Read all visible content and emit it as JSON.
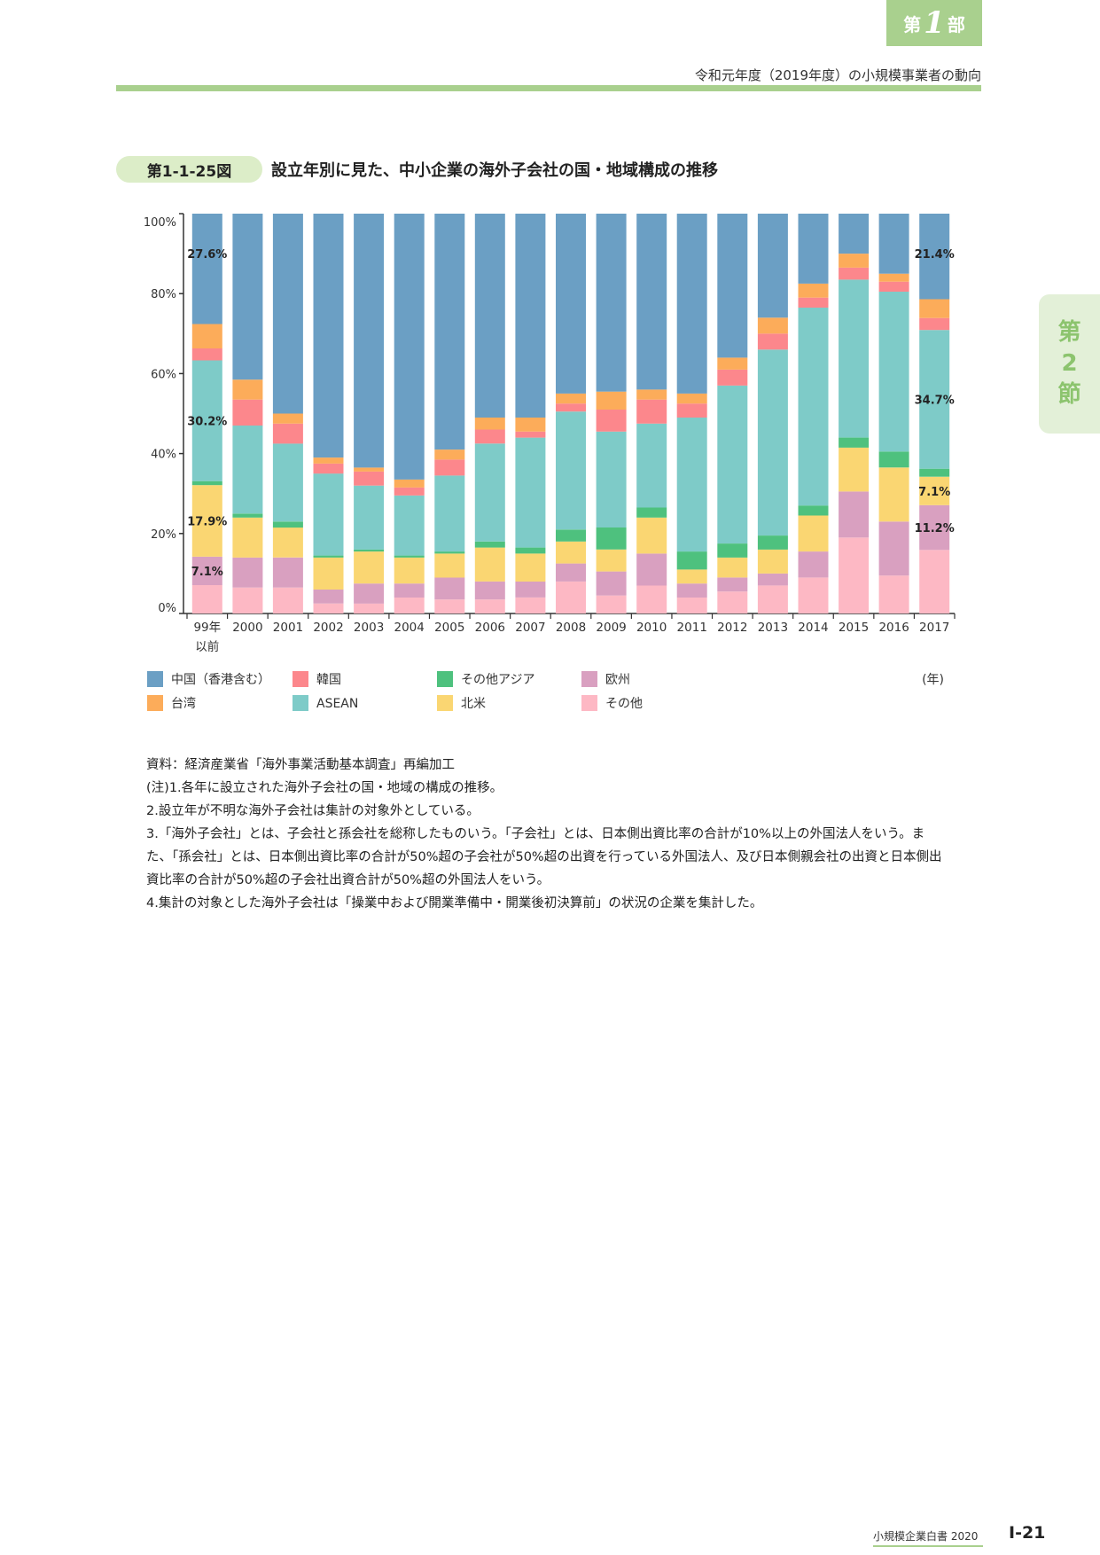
{
  "header": {
    "part_prefix": "第",
    "part_number": "1",
    "part_suffix": "部",
    "running_title": "令和元年度（2019年度）の小規模事業者の動向"
  },
  "section_tab": {
    "line1": "第",
    "line2": "2",
    "line3": "節"
  },
  "figure": {
    "label": "第1-1-25図",
    "title": "設立年別に見た、中小企業の海外子会社の国・地域構成の推移"
  },
  "chart_data": {
    "type": "bar",
    "stacked": true,
    "percent_stacked": true,
    "title": "",
    "xlabel": "",
    "ylabel": "",
    "x_unit_label": "(年)",
    "ylim": [
      0,
      100
    ],
    "y_ticks": [
      "0%",
      "20%",
      "40%",
      "60%",
      "80%",
      "100%"
    ],
    "grid": false,
    "legend_position": "bottom",
    "categories": [
      "99年\n以前",
      "2000",
      "2001",
      "2002",
      "2003",
      "2004",
      "2005",
      "2006",
      "2007",
      "2008",
      "2009",
      "2010",
      "2011",
      "2012",
      "2013",
      "2014",
      "2015",
      "2016",
      "2017"
    ],
    "series": [
      {
        "name": "その他",
        "color": "#fdb8c4",
        "values": [
          7.1,
          6.5,
          6.5,
          2.5,
          2.5,
          4.0,
          3.5,
          3.5,
          4.0,
          8.0,
          4.5,
          7.0,
          4.0,
          5.5,
          7.0,
          9.0,
          19.0,
          9.5,
          15.9
        ]
      },
      {
        "name": "欧州",
        "color": "#d9a0c0",
        "values": [
          7.1,
          7.5,
          7.5,
          3.5,
          5.0,
          3.5,
          5.5,
          4.5,
          4.0,
          4.5,
          6.0,
          8.0,
          3.5,
          3.5,
          3.0,
          6.5,
          11.5,
          13.5,
          11.2
        ]
      },
      {
        "name": "北米",
        "color": "#fad672",
        "values": [
          17.9,
          10.0,
          7.5,
          8.0,
          8.0,
          6.5,
          6.0,
          8.5,
          7.0,
          5.5,
          5.5,
          9.0,
          3.5,
          5.0,
          6.0,
          9.0,
          11.0,
          13.5,
          7.1
        ]
      },
      {
        "name": "その他アジア",
        "color": "#4ec17e",
        "values": [
          1.0,
          1.0,
          1.5,
          0.5,
          0.5,
          0.5,
          0.5,
          1.5,
          1.5,
          3.0,
          5.5,
          2.5,
          4.5,
          3.5,
          3.5,
          2.5,
          2.5,
          4.0,
          2.0
        ]
      },
      {
        "name": "ASEAN",
        "color": "#7ecbc8",
        "values": [
          30.2,
          22.0,
          19.5,
          20.5,
          16.0,
          15.0,
          19.0,
          24.5,
          27.5,
          29.5,
          24.0,
          21.0,
          33.5,
          39.5,
          46.5,
          49.5,
          39.5,
          40.0,
          34.7
        ]
      },
      {
        "name": "韓国",
        "color": "#fc878c",
        "values": [
          3.0,
          6.5,
          5.0,
          2.5,
          3.5,
          2.0,
          4.0,
          3.5,
          1.5,
          2.0,
          5.5,
          6.0,
          3.5,
          4.0,
          4.0,
          2.5,
          3.0,
          2.5,
          3.0
        ]
      },
      {
        "name": "台湾",
        "color": "#fcac5a",
        "values": [
          6.1,
          5.0,
          2.5,
          1.5,
          1.0,
          2.0,
          2.5,
          3.0,
          3.5,
          2.5,
          4.5,
          2.5,
          2.5,
          3.0,
          4.0,
          3.5,
          3.5,
          2.0,
          4.7
        ]
      },
      {
        "name": "中国（香港含む）",
        "color": "#6b9fc4",
        "values": [
          27.6,
          41.5,
          50.0,
          61.0,
          63.5,
          66.5,
          59.0,
          51.0,
          51.0,
          45.0,
          44.5,
          44.0,
          45.0,
          36.0,
          26.0,
          17.5,
          10.0,
          15.0,
          21.4
        ]
      }
    ],
    "data_labels": [
      {
        "category": "99年\n以前",
        "series": "中国（香港含む）",
        "text": "27.6%"
      },
      {
        "category": "99年\n以前",
        "series": "ASEAN",
        "text": "30.2%"
      },
      {
        "category": "99年\n以前",
        "series": "北米",
        "text": "17.9%"
      },
      {
        "category": "99年\n以前",
        "series": "欧州",
        "text": "7.1%"
      },
      {
        "category": "2017",
        "series": "中国（香港含む）",
        "text": "21.4%"
      },
      {
        "category": "2017",
        "series": "ASEAN",
        "text": "34.7%"
      },
      {
        "category": "2017",
        "series": "北米",
        "text": "7.1%"
      },
      {
        "category": "2017",
        "series": "欧州",
        "text": "11.2%"
      }
    ],
    "legend_order": [
      "中国（香港含む）",
      "韓国",
      "その他アジア",
      "欧州",
      "台湾",
      "ASEAN",
      "北米",
      "その他"
    ]
  },
  "notes": [
    "資料：経済産業省「海外事業活動基本調査」再編加工",
    "(注)1.各年に設立された海外子会社の国・地域の構成の推移。",
    "2.設立年が不明な海外子会社は集計の対象外としている。",
    "3.「海外子会社」とは、子会社と孫会社を総称したものいう。「子会社」とは、日本側出資比率の合計が10%以上の外国法人をいう。また、「孫会社」とは、日本側出資比率の合計が50%超の子会社が50%超の出資を行っている外国法人、及び日本側親会社の出資と日本側出資比率の合計が50%超の子会社出資合計が50%超の外国法人をいう。",
    "4.集計の対象とした海外子会社は「操業中および開業準備中・開業後初決算前」の状況の企業を集計した。"
  ],
  "footer": {
    "book_title": "小規模企業白書 2020",
    "page_number": "Ⅰ-21"
  }
}
